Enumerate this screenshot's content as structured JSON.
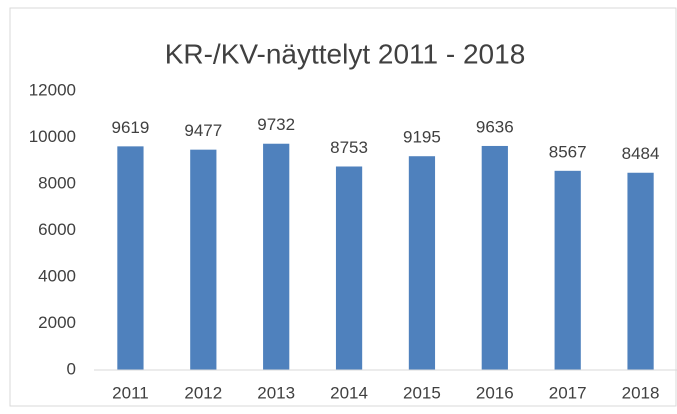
{
  "chart_data": {
    "type": "bar",
    "title": "KR-/KV-näyttelyt 2011 - 2018",
    "categories": [
      "2011",
      "2012",
      "2013",
      "2014",
      "2015",
      "2016",
      "2017",
      "2018"
    ],
    "values": [
      9619,
      9477,
      9732,
      8753,
      9195,
      9636,
      8567,
      8484
    ],
    "color": "#4f81bd",
    "ylim": [
      0,
      12000
    ],
    "yticks": [
      0,
      2000,
      4000,
      6000,
      8000,
      10000,
      12000
    ],
    "grid": false
  }
}
